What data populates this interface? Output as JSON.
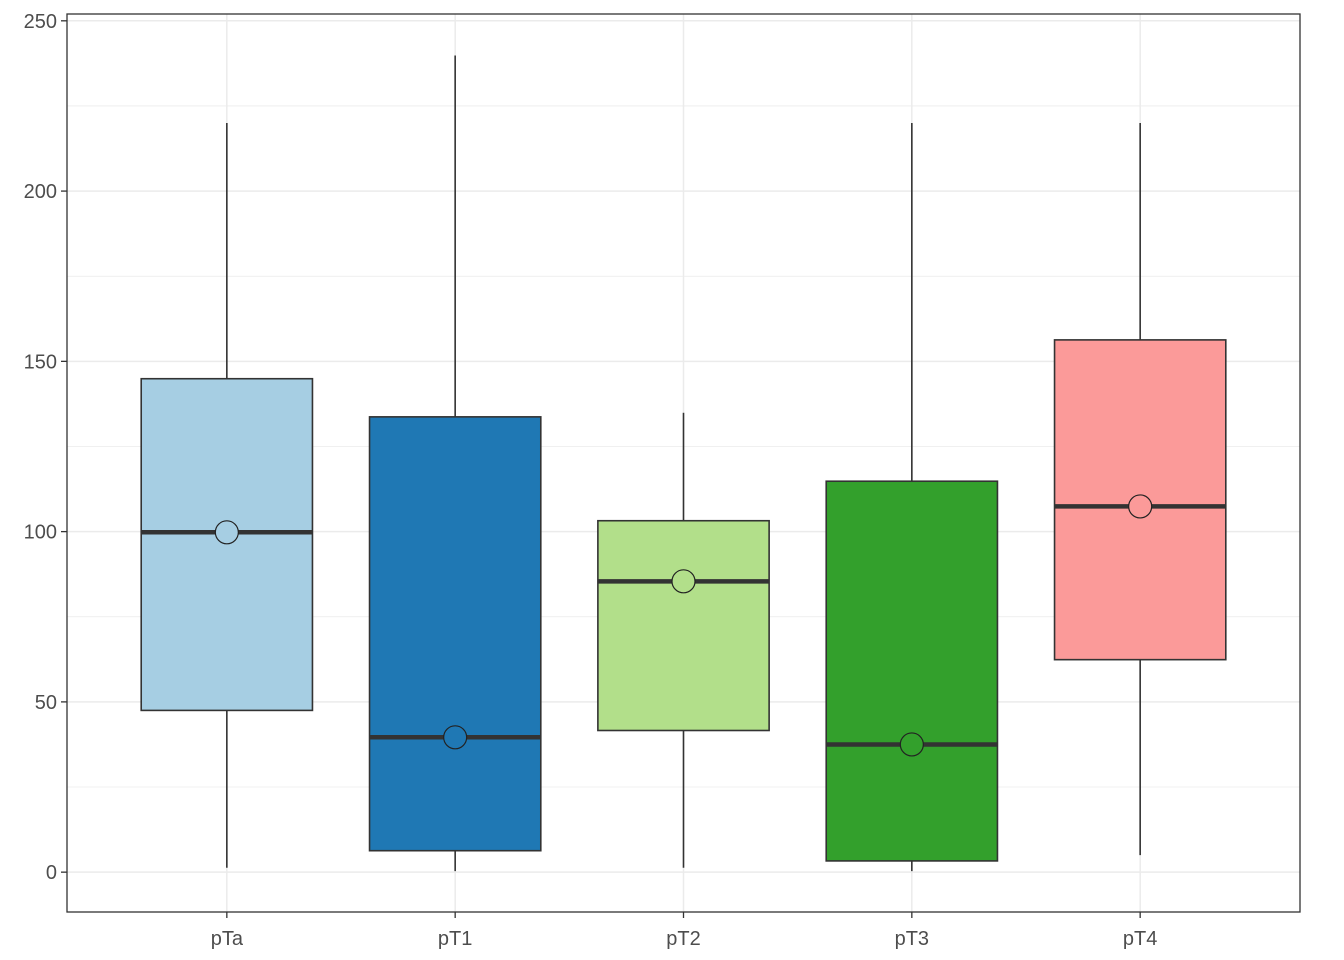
{
  "chart_data": {
    "type": "boxplot",
    "title": "",
    "xlabel": "",
    "ylabel": "",
    "ylim": [
      -11.7,
      252
    ],
    "y_ticks": [
      0,
      50,
      100,
      150,
      200,
      250
    ],
    "y_tick_labels": [
      "0",
      "50",
      "100",
      "150",
      "200",
      "250"
    ],
    "grid": true,
    "legend": "none",
    "categories": [
      "pTa",
      "pT1",
      "pT2",
      "pT3",
      "pT4"
    ],
    "boxes": [
      {
        "category": "pTa",
        "min": 1.3,
        "q1": 47.5,
        "median": 99.8,
        "q3": 144.9,
        "max": 220.0,
        "mean": 99.8,
        "color": "#a6cee3"
      },
      {
        "category": "pT1",
        "min": 0.3,
        "q1": 6.3,
        "median": 39.6,
        "q3": 133.7,
        "max": 239.8,
        "mean": 39.6,
        "color": "#1f78b4"
      },
      {
        "category": "pT2",
        "min": 1.3,
        "q1": 41.6,
        "median": 85.4,
        "q3": 103.2,
        "max": 134.9,
        "mean": 85.4,
        "color": "#b2df8a"
      },
      {
        "category": "pT3",
        "min": 0.3,
        "q1": 3.3,
        "median": 37.5,
        "q3": 114.8,
        "max": 220.0,
        "mean": 37.5,
        "color": "#33a02c"
      },
      {
        "category": "pT4",
        "min": 5.0,
        "q1": 62.4,
        "median": 107.4,
        "q3": 156.3,
        "max": 220.0,
        "mean": 107.4,
        "color": "#fb9a99"
      }
    ]
  }
}
